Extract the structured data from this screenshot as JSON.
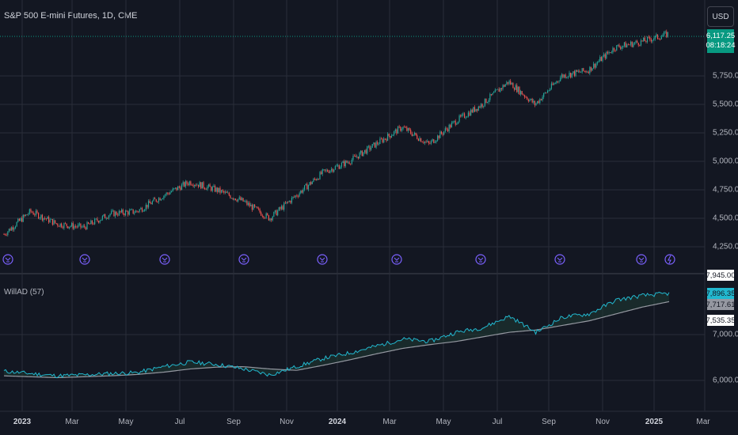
{
  "header": {
    "title": "S&P 500 E-mini Futures, 1D, CME",
    "currency": "USD"
  },
  "price_axis": {
    "ticks": [
      "5,750.00",
      "5,500.00",
      "5,250.00",
      "5,000.00",
      "4,750.00",
      "4,500.00",
      "4,250.00"
    ],
    "last_price": "6,117.25",
    "countdown": "08:18:24"
  },
  "indicator": {
    "label": "WillAD (57)",
    "ticks": [
      "7,000.00",
      "6,000.00"
    ],
    "tags": [
      "7,945.00",
      "7,896.35",
      "7,717.61",
      "7,535.35"
    ]
  },
  "time_axis": {
    "labels": [
      "2023",
      "Mar",
      "May",
      "Jul",
      "Sep",
      "Nov",
      "2024",
      "Mar",
      "May",
      "Jul",
      "Sep",
      "Nov",
      "2025",
      "Mar"
    ]
  },
  "events": {
    "icon": "dividend-arrow-icon",
    "count": 10,
    "last_icon": "lightning-icon"
  },
  "colors": {
    "background": "#131722",
    "up": "#26a69a",
    "down": "#ef5350",
    "accent": "#089981",
    "indicator_line": "#22b8cf",
    "ma_line": "#9598a1",
    "event_icon": "#7b61ff"
  },
  "chart_data": [
    {
      "type": "candlestick",
      "title": "S&P 500 E-mini Futures, 1D, CME",
      "x": [
        "2022-12",
        "2023-01",
        "2023-02",
        "2023-03",
        "2023-04",
        "2023-05",
        "2023-06",
        "2023-07",
        "2023-08",
        "2023-09",
        "2023-10",
        "2023-11",
        "2023-12",
        "2024-01",
        "2024-02",
        "2024-03",
        "2024-04",
        "2024-05",
        "2024-06",
        "2024-07",
        "2024-08",
        "2024-09",
        "2024-10",
        "2024-11",
        "2024-12",
        "2025-01"
      ],
      "close": [
        4360,
        4560,
        4450,
        4420,
        4540,
        4560,
        4700,
        4820,
        4750,
        4650,
        4500,
        4700,
        4900,
        5000,
        5150,
        5300,
        5150,
        5350,
        5500,
        5700,
        5500,
        5750,
        5800,
        6000,
        6050,
        6117.25
      ],
      "ylim": [
        4150,
        6250
      ],
      "last_price": 6117.25
    },
    {
      "type": "line",
      "title": "WillAD (57)",
      "series": [
        {
          "values": [
            6200,
            6150,
            6100,
            6120,
            6150,
            6170,
            6300,
            6400,
            6350,
            6250,
            6120,
            6300,
            6480,
            6600,
            6750,
            6900,
            6850,
            7050,
            7150,
            7400,
            7050,
            7380,
            7450,
            7750,
            7850,
            7896.35
          ]
        },
        {
          "values": [
            6100,
            6080,
            6060,
            6080,
            6100,
            6130,
            6180,
            6250,
            6290,
            6300,
            6250,
            6220,
            6330,
            6450,
            6580,
            6700,
            6780,
            6850,
            6950,
            7050,
            7100,
            7200,
            7300,
            7450,
            7600,
            7717.61
          ]
        }
      ],
      "ylim": [
        5700,
        8100
      ]
    }
  ]
}
